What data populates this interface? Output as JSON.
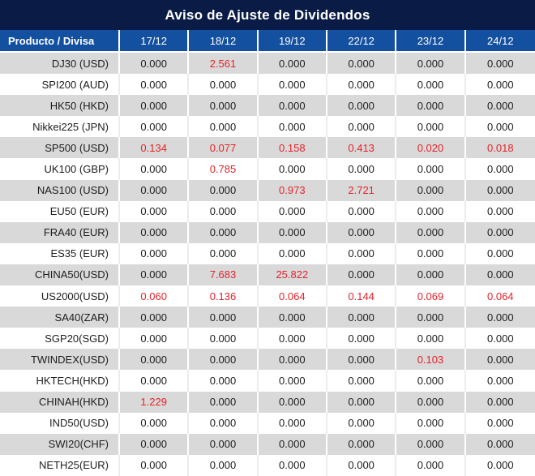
{
  "title_bar": {
    "text": "Aviso de Ajuste de Dividendos"
  },
  "colors": {
    "title_bg": "#0A1B45",
    "header_bg": "#1450A0",
    "row_alt_bg": "#D9D9D9",
    "row_bg": "#FFFFFF",
    "value_text": "#1D1D1D",
    "highlight_red": "#E3242B"
  },
  "chart_data": {
    "type": "table",
    "title": "Aviso de Ajuste de Dividendos",
    "columns": [
      "Producto / Divisa",
      "17/12",
      "18/12",
      "19/12",
      "22/12",
      "23/12",
      "24/12"
    ],
    "rows": [
      {
        "product": "DJ30 (USD)",
        "values": [
          "0.000",
          "2.561",
          "0.000",
          "0.000",
          "0.000",
          "0.000"
        ],
        "red_flags": [
          false,
          true,
          false,
          false,
          false,
          false
        ]
      },
      {
        "product": "SPI200 (AUD)",
        "values": [
          "0.000",
          "0.000",
          "0.000",
          "0.000",
          "0.000",
          "0.000"
        ],
        "red_flags": [
          false,
          false,
          false,
          false,
          false,
          false
        ]
      },
      {
        "product": "HK50 (HKD)",
        "values": [
          "0.000",
          "0.000",
          "0.000",
          "0.000",
          "0.000",
          "0.000"
        ],
        "red_flags": [
          false,
          false,
          false,
          false,
          false,
          false
        ]
      },
      {
        "product": "Nikkei225 (JPN)",
        "values": [
          "0.000",
          "0.000",
          "0.000",
          "0.000",
          "0.000",
          "0.000"
        ],
        "red_flags": [
          false,
          false,
          false,
          false,
          false,
          false
        ]
      },
      {
        "product": "SP500 (USD)",
        "values": [
          "0.134",
          "0.077",
          "0.158",
          "0.413",
          "0.020",
          "0.018"
        ],
        "red_flags": [
          true,
          true,
          true,
          true,
          true,
          true
        ]
      },
      {
        "product": "UK100 (GBP)",
        "values": [
          "0.000",
          "0.785",
          "0.000",
          "0.000",
          "0.000",
          "0.000"
        ],
        "red_flags": [
          false,
          true,
          false,
          false,
          false,
          false
        ]
      },
      {
        "product": "NAS100 (USD)",
        "values": [
          "0.000",
          "0.000",
          "0.973",
          "2.721",
          "0.000",
          "0.000"
        ],
        "red_flags": [
          false,
          false,
          true,
          true,
          false,
          false
        ]
      },
      {
        "product": "EU50 (EUR)",
        "values": [
          "0.000",
          "0.000",
          "0.000",
          "0.000",
          "0.000",
          "0.000"
        ],
        "red_flags": [
          false,
          false,
          false,
          false,
          false,
          false
        ]
      },
      {
        "product": "FRA40 (EUR)",
        "values": [
          "0.000",
          "0.000",
          "0.000",
          "0.000",
          "0.000",
          "0.000"
        ],
        "red_flags": [
          false,
          false,
          false,
          false,
          false,
          false
        ]
      },
      {
        "product": "ES35 (EUR)",
        "values": [
          "0.000",
          "0.000",
          "0.000",
          "0.000",
          "0.000",
          "0.000"
        ],
        "red_flags": [
          false,
          false,
          false,
          false,
          false,
          false
        ]
      },
      {
        "product": "CHINA50(USD)",
        "values": [
          "0.000",
          "7.683",
          "25.822",
          "0.000",
          "0.000",
          "0.000"
        ],
        "red_flags": [
          false,
          true,
          true,
          false,
          false,
          false
        ]
      },
      {
        "product": "US2000(USD)",
        "values": [
          "0.060",
          "0.136",
          "0.064",
          "0.144",
          "0.069",
          "0.064"
        ],
        "red_flags": [
          true,
          true,
          true,
          true,
          true,
          true
        ]
      },
      {
        "product": "SA40(ZAR)",
        "values": [
          "0.000",
          "0.000",
          "0.000",
          "0.000",
          "0.000",
          "0.000"
        ],
        "red_flags": [
          false,
          false,
          false,
          false,
          false,
          false
        ]
      },
      {
        "product": "SGP20(SGD)",
        "values": [
          "0.000",
          "0.000",
          "0.000",
          "0.000",
          "0.000",
          "0.000"
        ],
        "red_flags": [
          false,
          false,
          false,
          false,
          false,
          false
        ]
      },
      {
        "product": "TWINDEX(USD)",
        "values": [
          "0.000",
          "0.000",
          "0.000",
          "0.000",
          "0.103",
          "0.000"
        ],
        "red_flags": [
          false,
          false,
          false,
          false,
          true,
          false
        ]
      },
      {
        "product": "HKTECH(HKD)",
        "values": [
          "0.000",
          "0.000",
          "0.000",
          "0.000",
          "0.000",
          "0.000"
        ],
        "red_flags": [
          false,
          false,
          false,
          false,
          false,
          false
        ]
      },
      {
        "product": "CHINAH(HKD)",
        "values": [
          "1.229",
          "0.000",
          "0.000",
          "0.000",
          "0.000",
          "0.000"
        ],
        "red_flags": [
          true,
          false,
          false,
          false,
          false,
          false
        ]
      },
      {
        "product": "IND50(USD)",
        "values": [
          "0.000",
          "0.000",
          "0.000",
          "0.000",
          "0.000",
          "0.000"
        ],
        "red_flags": [
          false,
          false,
          false,
          false,
          false,
          false
        ]
      },
      {
        "product": "SWI20(CHF)",
        "values": [
          "0.000",
          "0.000",
          "0.000",
          "0.000",
          "0.000",
          "0.000"
        ],
        "red_flags": [
          false,
          false,
          false,
          false,
          false,
          false
        ]
      },
      {
        "product": "NETH25(EUR)",
        "values": [
          "0.000",
          "0.000",
          "0.000",
          "0.000",
          "0.000",
          "0.000"
        ],
        "red_flags": [
          false,
          false,
          false,
          false,
          false,
          false
        ]
      }
    ]
  }
}
